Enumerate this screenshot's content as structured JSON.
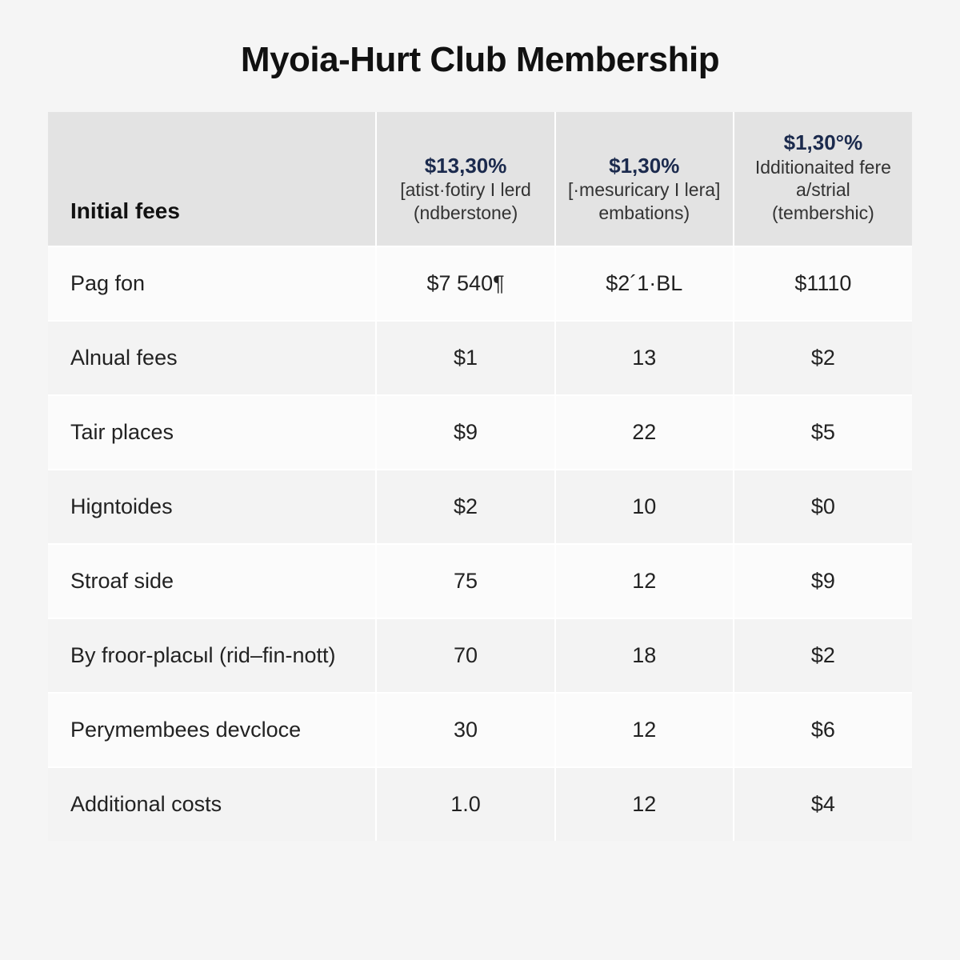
{
  "title": "Myoia-Hurt Club Membership",
  "table": {
    "type": "table",
    "background_color": "#f5f5f5",
    "header_bg": "#e3e3e3",
    "row_bg_odd": "#fbfbfb",
    "row_bg_even": "#f3f3f3",
    "header_price_color": "#1b2a4d",
    "text_color": "#1a1a1a",
    "columns": [
      {
        "label": "Initial fees",
        "price": "",
        "sub": ""
      },
      {
        "label": "",
        "price": "$13,30%",
        "sub": "[atist·fotiry I lerd (ndberstone)"
      },
      {
        "label": "",
        "price": "$1,30%",
        "sub": "[·mesuricary I lera] embations)"
      },
      {
        "label": "",
        "price": "$1,30°%",
        "sub": "Idditionaited fere a/strial (tembershic)"
      }
    ],
    "rows": [
      {
        "label": "Pag fon",
        "c1": "$7 540¶",
        "c2": "$2´1·BL",
        "c3": "$1110"
      },
      {
        "label": "Alnual fees",
        "c1": "$1",
        "c2": "13",
        "c3": "$2"
      },
      {
        "label": "Tair places",
        "c1": "$9",
        "c2": "22",
        "c3": "$5"
      },
      {
        "label": "Higntoides",
        "c1": "$2",
        "c2": "10",
        "c3": "$0"
      },
      {
        "label": "Stroaf side",
        "c1": "75",
        "c2": "12",
        "c3": "$9"
      },
      {
        "label": "By froor-placыl (rid–fin-nott)",
        "c1": "70",
        "c2": "18",
        "c3": "$2"
      },
      {
        "label": "Perymembees devcloce",
        "c1": "30",
        "c2": "12",
        "c3": "$6"
      },
      {
        "label": "Additional costs",
        "c1": "1.0",
        "c2": "12",
        "c3": "$4"
      }
    ]
  }
}
